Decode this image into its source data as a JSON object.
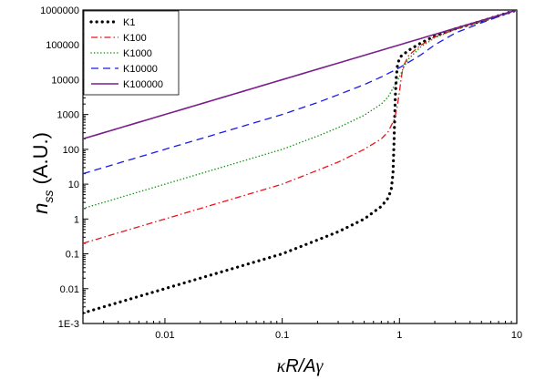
{
  "chart_data": {
    "type": "line",
    "xscale": "log",
    "yscale": "log",
    "xlim": [
      0.002,
      10
    ],
    "ylim": [
      0.001,
      1000000
    ],
    "xlabel": {
      "k": "κ",
      "rest": "R/A",
      "g": "γ"
    },
    "ylabel": {
      "main": "n",
      "sub": "ss",
      "rest": " (A.U.)"
    },
    "x_ticks": [
      {
        "value": 0.01,
        "label": "0.01"
      },
      {
        "value": 0.1,
        "label": "0.1"
      },
      {
        "value": 1,
        "label": "1"
      },
      {
        "value": 10,
        "label": "10"
      }
    ],
    "y_ticks": [
      {
        "value": 0.001,
        "label": "1E-3"
      },
      {
        "value": 0.01,
        "label": "0.01"
      },
      {
        "value": 0.1,
        "label": "0.1"
      },
      {
        "value": 1,
        "label": "1"
      },
      {
        "value": 10,
        "label": "10"
      },
      {
        "value": 100,
        "label": "100"
      },
      {
        "value": 1000,
        "label": "1000"
      },
      {
        "value": 10000,
        "label": "10000"
      },
      {
        "value": 100000,
        "label": "100000"
      },
      {
        "value": 1000000,
        "label": "1000000"
      }
    ],
    "legend_position": "top-left",
    "grid": false,
    "series": [
      {
        "name": "K1",
        "color": "#000000",
        "dash": "dot-thick",
        "x": [
          0.002,
          0.005,
          0.01,
          0.02,
          0.05,
          0.1,
          0.2,
          0.3,
          0.5,
          0.7,
          0.8,
          0.85,
          0.88,
          0.9,
          0.92,
          0.94,
          0.96,
          0.98,
          1.0,
          1.02,
          1.05,
          1.1,
          1.2,
          1.5,
          2,
          3,
          5,
          10
        ],
        "y": [
          0.002,
          0.005,
          0.01,
          0.02,
          0.05,
          0.1,
          0.25,
          0.43,
          1.0,
          2.3,
          4,
          7,
          20,
          200,
          3000,
          12000,
          25000,
          33000,
          40000,
          45000,
          50000,
          56000,
          70000,
          110000,
          180000,
          290000,
          480000,
          1000000
        ]
      },
      {
        "name": "K100",
        "color": "#e8141c",
        "dash": "dashdot",
        "x": [
          0.002,
          0.005,
          0.01,
          0.02,
          0.05,
          0.1,
          0.2,
          0.3,
          0.5,
          0.7,
          0.8,
          0.9,
          0.95,
          1.0,
          1.03,
          1.06,
          1.1,
          1.2,
          1.5,
          2,
          3,
          5,
          10
        ],
        "y": [
          0.2,
          0.5,
          1,
          2,
          5,
          10,
          25,
          43,
          100,
          200,
          320,
          700,
          1500,
          4500,
          10000,
          18000,
          28000,
          50000,
          95000,
          170000,
          280000,
          470000,
          1000000
        ]
      },
      {
        "name": "K1000",
        "color": "#119911",
        "dash": "dot",
        "x": [
          0.002,
          0.005,
          0.01,
          0.02,
          0.05,
          0.1,
          0.2,
          0.3,
          0.5,
          0.7,
          0.8,
          0.9,
          1.0,
          1.1,
          1.2,
          1.5,
          2,
          3,
          5,
          10
        ],
        "y": [
          2,
          5,
          10,
          20,
          50,
          100,
          240,
          420,
          950,
          2000,
          3200,
          6500,
          12000,
          25000,
          40000,
          85000,
          160000,
          280000,
          470000,
          1000000
        ]
      },
      {
        "name": "K10000",
        "color": "#1a1aee",
        "dash": "dash",
        "x": [
          0.002,
          0.005,
          0.01,
          0.02,
          0.05,
          0.1,
          0.2,
          0.3,
          0.5,
          0.7,
          1.0,
          1.5,
          2,
          3,
          5,
          10
        ],
        "y": [
          20,
          50,
          100,
          200,
          500,
          1000,
          2200,
          3700,
          7200,
          12000,
          22000,
          50000,
          100000,
          220000,
          430000,
          1000000
        ]
      },
      {
        "name": "K100000",
        "color": "#7a1e8c",
        "dash": "solid",
        "x": [
          0.002,
          0.01,
          0.1,
          1,
          10
        ],
        "y": [
          200,
          1000,
          10000,
          100000,
          1000000
        ]
      }
    ]
  }
}
